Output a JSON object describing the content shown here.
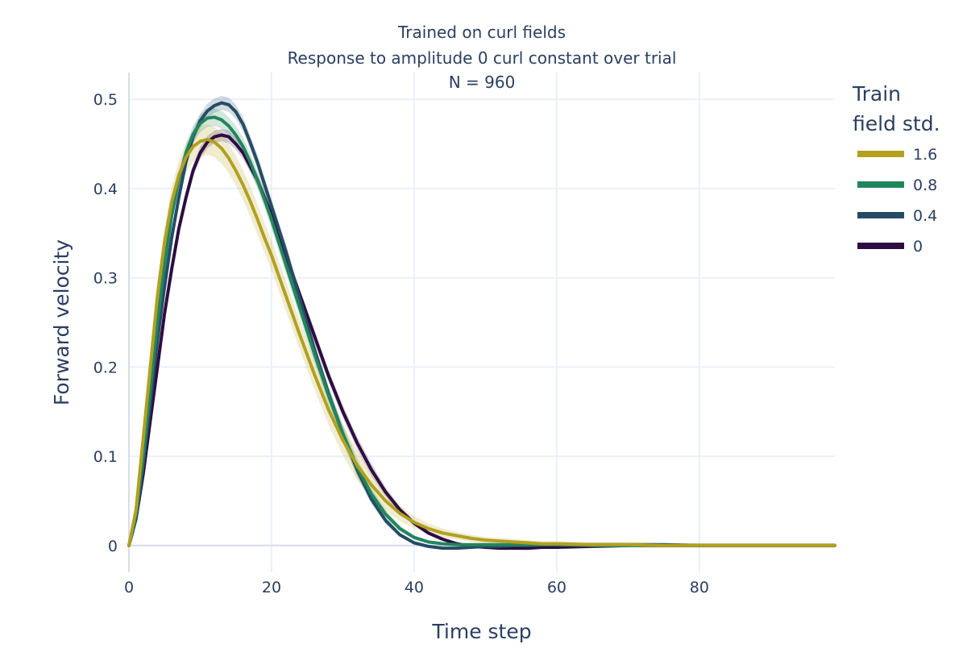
{
  "chart_data": {
    "type": "line",
    "title": [
      "Trained on curl fields",
      "Response to amplitude 0 curl constant over trial",
      "N = 960"
    ],
    "xlabel": "Time step",
    "ylabel": "Forward velocity",
    "xlim": [
      0,
      99
    ],
    "ylim": [
      -0.03,
      0.53
    ],
    "xticks": [
      0,
      20,
      40,
      60,
      80
    ],
    "xtick_labels": [
      "0",
      "20",
      "40",
      "60",
      "80"
    ],
    "yticks": [
      0,
      0.1,
      0.2,
      0.3,
      0.4,
      0.5
    ],
    "ytick_labels": [
      "0",
      "0.1",
      "0.2",
      "0.3",
      "0.4",
      "0.5"
    ],
    "grid": true,
    "legend": {
      "title": [
        "Train",
        "field std."
      ],
      "placement": "top-right outside"
    },
    "series": [
      {
        "name": "0",
        "color": "#2d0d42",
        "band_half_width": 0.007,
        "x": [
          0,
          1,
          2,
          3,
          4,
          5,
          6,
          7,
          8,
          9,
          10,
          11,
          12,
          13,
          14,
          15,
          16,
          17,
          18,
          19,
          20,
          22,
          24,
          26,
          28,
          30,
          32,
          34,
          36,
          38,
          40,
          42,
          44,
          46,
          48,
          50,
          52,
          54,
          56,
          58,
          60,
          65,
          70,
          75,
          80,
          85,
          90,
          95,
          99
        ],
        "y": [
          0,
          0.03,
          0.08,
          0.14,
          0.2,
          0.26,
          0.31,
          0.355,
          0.39,
          0.42,
          0.44,
          0.452,
          0.458,
          0.46,
          0.458,
          0.45,
          0.44,
          0.425,
          0.41,
          0.39,
          0.37,
          0.325,
          0.28,
          0.235,
          0.19,
          0.15,
          0.115,
          0.085,
          0.06,
          0.04,
          0.025,
          0.014,
          0.007,
          0.002,
          -0.001,
          -0.002,
          -0.003,
          -0.003,
          -0.003,
          -0.002,
          -0.002,
          -0.001,
          0,
          0,
          0,
          0,
          0,
          0,
          0
        ]
      },
      {
        "name": "0.4",
        "color": "#254c66",
        "band_half_width": 0.008,
        "x": [
          0,
          1,
          2,
          3,
          4,
          5,
          6,
          7,
          8,
          9,
          10,
          11,
          12,
          13,
          14,
          15,
          16,
          17,
          18,
          19,
          20,
          22,
          24,
          26,
          28,
          30,
          32,
          34,
          36,
          38,
          40,
          42,
          44,
          46,
          48,
          50,
          52,
          54,
          56,
          58,
          60,
          65,
          70,
          75,
          80,
          85,
          90,
          95,
          99
        ],
        "y": [
          0,
          0.03,
          0.09,
          0.16,
          0.23,
          0.29,
          0.345,
          0.39,
          0.43,
          0.458,
          0.476,
          0.487,
          0.493,
          0.496,
          0.494,
          0.486,
          0.472,
          0.452,
          0.43,
          0.405,
          0.38,
          0.33,
          0.275,
          0.22,
          0.17,
          0.125,
          0.085,
          0.052,
          0.028,
          0.012,
          0.003,
          -0.001,
          -0.003,
          -0.003,
          -0.002,
          -0.001,
          -0.001,
          0,
          0,
          0.001,
          0.001,
          0.001,
          0.001,
          0.001,
          0,
          0,
          0,
          0,
          0
        ]
      },
      {
        "name": "0.8",
        "color": "#22855c",
        "band_half_width": 0.01,
        "x": [
          0,
          1,
          2,
          3,
          4,
          5,
          6,
          7,
          8,
          9,
          10,
          11,
          12,
          13,
          14,
          15,
          16,
          17,
          18,
          19,
          20,
          22,
          24,
          26,
          28,
          30,
          32,
          34,
          36,
          38,
          40,
          42,
          44,
          46,
          48,
          50,
          52,
          54,
          56,
          58,
          60,
          65,
          70,
          75,
          80,
          85,
          90,
          95,
          99
        ],
        "y": [
          0,
          0.035,
          0.1,
          0.175,
          0.25,
          0.315,
          0.37,
          0.41,
          0.44,
          0.461,
          0.473,
          0.479,
          0.48,
          0.477,
          0.47,
          0.46,
          0.447,
          0.43,
          0.41,
          0.388,
          0.365,
          0.315,
          0.265,
          0.215,
          0.168,
          0.125,
          0.088,
          0.058,
          0.035,
          0.019,
          0.009,
          0.004,
          0.002,
          0.001,
          0.001,
          0.001,
          0.001,
          0.001,
          0.001,
          0.001,
          0.001,
          0,
          0,
          0,
          0,
          0,
          0,
          0,
          0
        ]
      },
      {
        "name": "1.6",
        "color": "#b2a01e",
        "band_half_width": 0.017,
        "x": [
          0,
          1,
          2,
          3,
          4,
          5,
          6,
          7,
          8,
          9,
          10,
          11,
          12,
          13,
          14,
          15,
          16,
          17,
          18,
          19,
          20,
          22,
          24,
          26,
          28,
          30,
          32,
          34,
          36,
          38,
          40,
          42,
          44,
          46,
          48,
          50,
          52,
          54,
          56,
          58,
          60,
          65,
          70,
          75,
          80,
          85,
          90,
          95,
          99
        ],
        "y": [
          0,
          0.04,
          0.12,
          0.2,
          0.28,
          0.34,
          0.385,
          0.415,
          0.435,
          0.447,
          0.453,
          0.455,
          0.452,
          0.445,
          0.434,
          0.42,
          0.404,
          0.386,
          0.366,
          0.345,
          0.325,
          0.28,
          0.235,
          0.192,
          0.152,
          0.118,
          0.09,
          0.068,
          0.05,
          0.036,
          0.026,
          0.019,
          0.014,
          0.011,
          0.008,
          0.006,
          0.005,
          0.004,
          0.003,
          0.002,
          0.002,
          0.001,
          0.001,
          0,
          0,
          0,
          0,
          0,
          0
        ]
      }
    ],
    "legend_order": [
      "1.6",
      "0.8",
      "0.4",
      "0"
    ]
  }
}
